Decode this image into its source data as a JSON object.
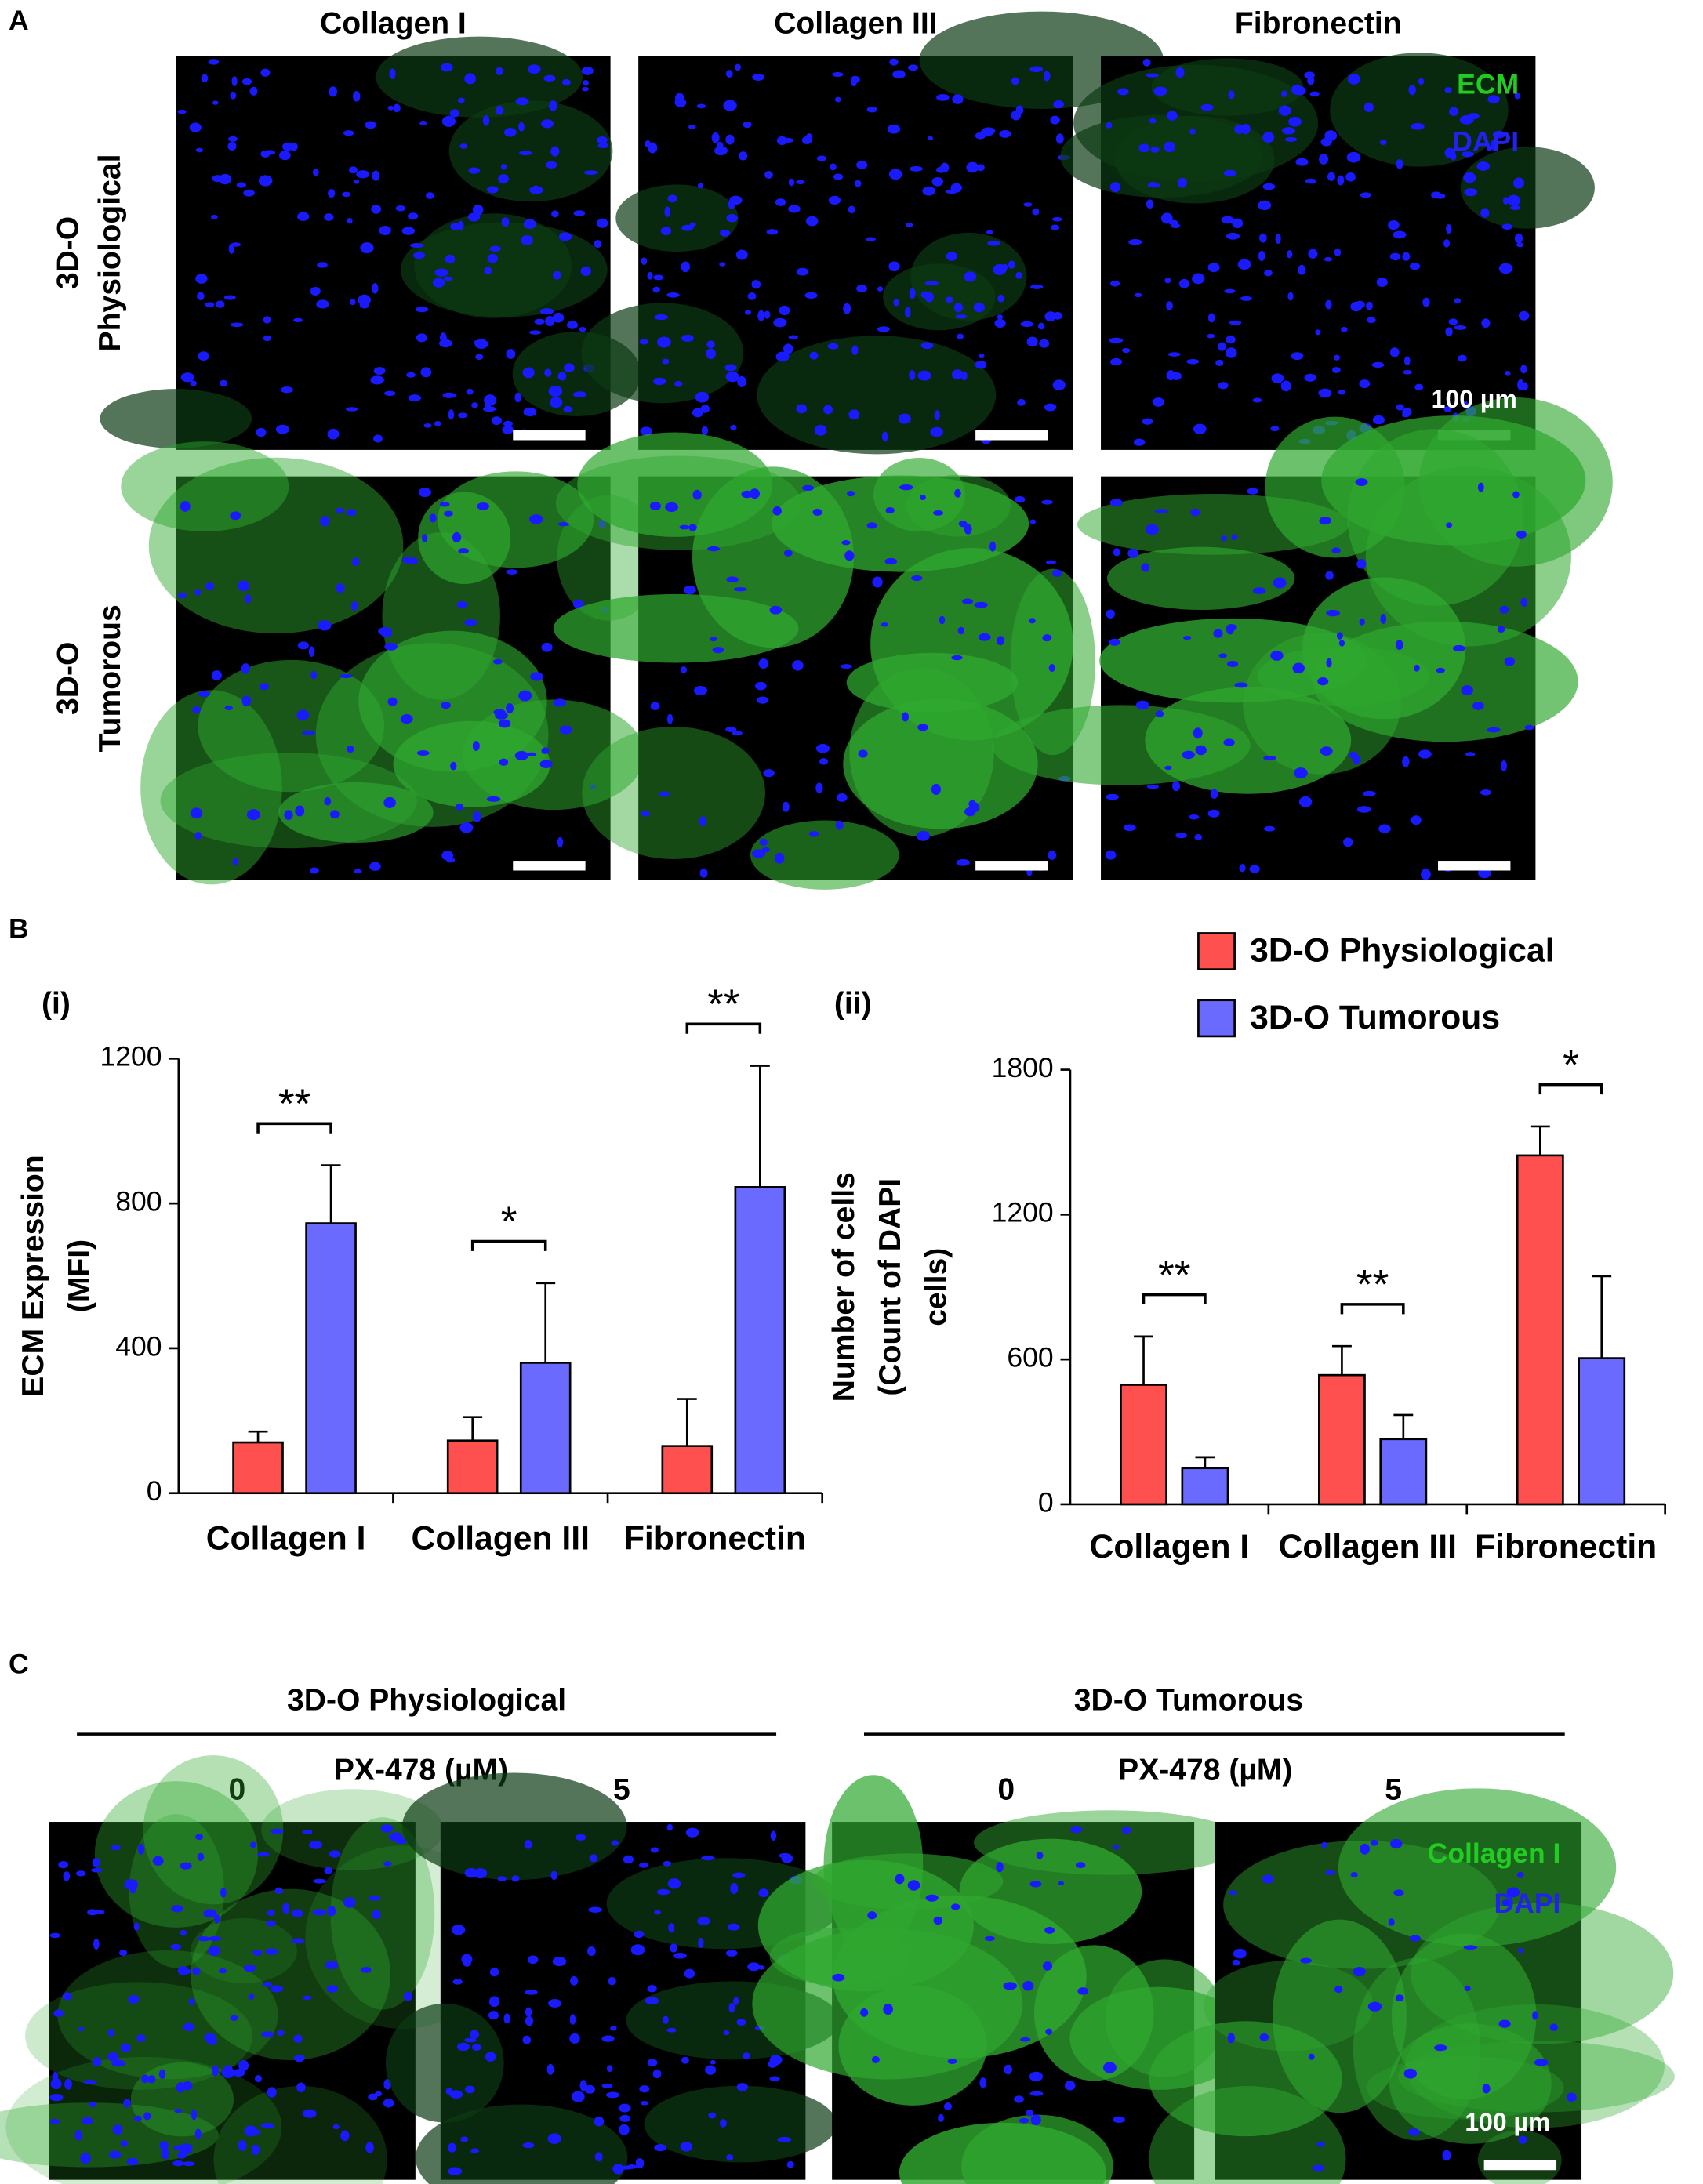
{
  "panel_labels": [
    "A",
    "B",
    "C"
  ],
  "panel_a": {
    "columns": [
      "Collagen I",
      "Collagen III",
      "Fibronectin"
    ],
    "rows": [
      [
        "3D-O",
        "Physiological"
      ],
      [
        "3D-O",
        "Tumorous"
      ]
    ],
    "legend": [
      "ECM",
      "DAPI"
    ],
    "scale_bar": "100 µm"
  },
  "chart_data": [
    {
      "type": "bar",
      "label": "(i)",
      "ylabel": [
        "ECM Expression",
        "(MFI)"
      ],
      "categories": [
        "Collagen I",
        "Collagen III",
        "Fibronectin"
      ],
      "series": [
        {
          "name": "3D-O Physiological",
          "color": "#ff5050",
          "values": [
            140,
            145,
            130
          ],
          "errors": [
            30,
            65,
            130
          ]
        },
        {
          "name": "3D-O Tumorous",
          "color": "#6a6aff",
          "values": [
            745,
            360,
            845
          ],
          "errors": [
            160,
            220,
            335
          ]
        }
      ],
      "significance": [
        "**",
        "*",
        "**"
      ],
      "ylim": [
        0,
        1200
      ],
      "yticks": [
        0,
        400,
        800,
        1200
      ]
    },
    {
      "type": "bar",
      "label": "(ii)",
      "ylabel": [
        "Number of cells",
        "(Count of DAPI",
        "cells)"
      ],
      "categories": [
        "Collagen I",
        "Collagen III",
        "Fibronectin"
      ],
      "series": [
        {
          "color": "#ff5050",
          "values": [
            495,
            535,
            1445
          ],
          "errors": [
            200,
            120,
            120
          ]
        },
        {
          "color": "#6a6aff",
          "values": [
            150,
            270,
            605
          ],
          "errors": [
            45,
            100,
            340
          ]
        }
      ],
      "significance": [
        "**",
        "**",
        "*"
      ],
      "ylim": [
        0,
        1800
      ],
      "yticks": [
        0,
        600,
        1200,
        1800
      ]
    }
  ],
  "panel_c": {
    "groups": [
      {
        "title": "3D-O Physiological",
        "treatment": "PX-478 (µM)",
        "doses": [
          "0",
          "5"
        ]
      },
      {
        "title": "3D-O Tumorous",
        "treatment": "PX-478 (µM)",
        "doses": [
          "0",
          "5"
        ]
      }
    ],
    "legend": [
      "Collagen I",
      "DAPI"
    ],
    "scale_bar": "100 µm"
  }
}
